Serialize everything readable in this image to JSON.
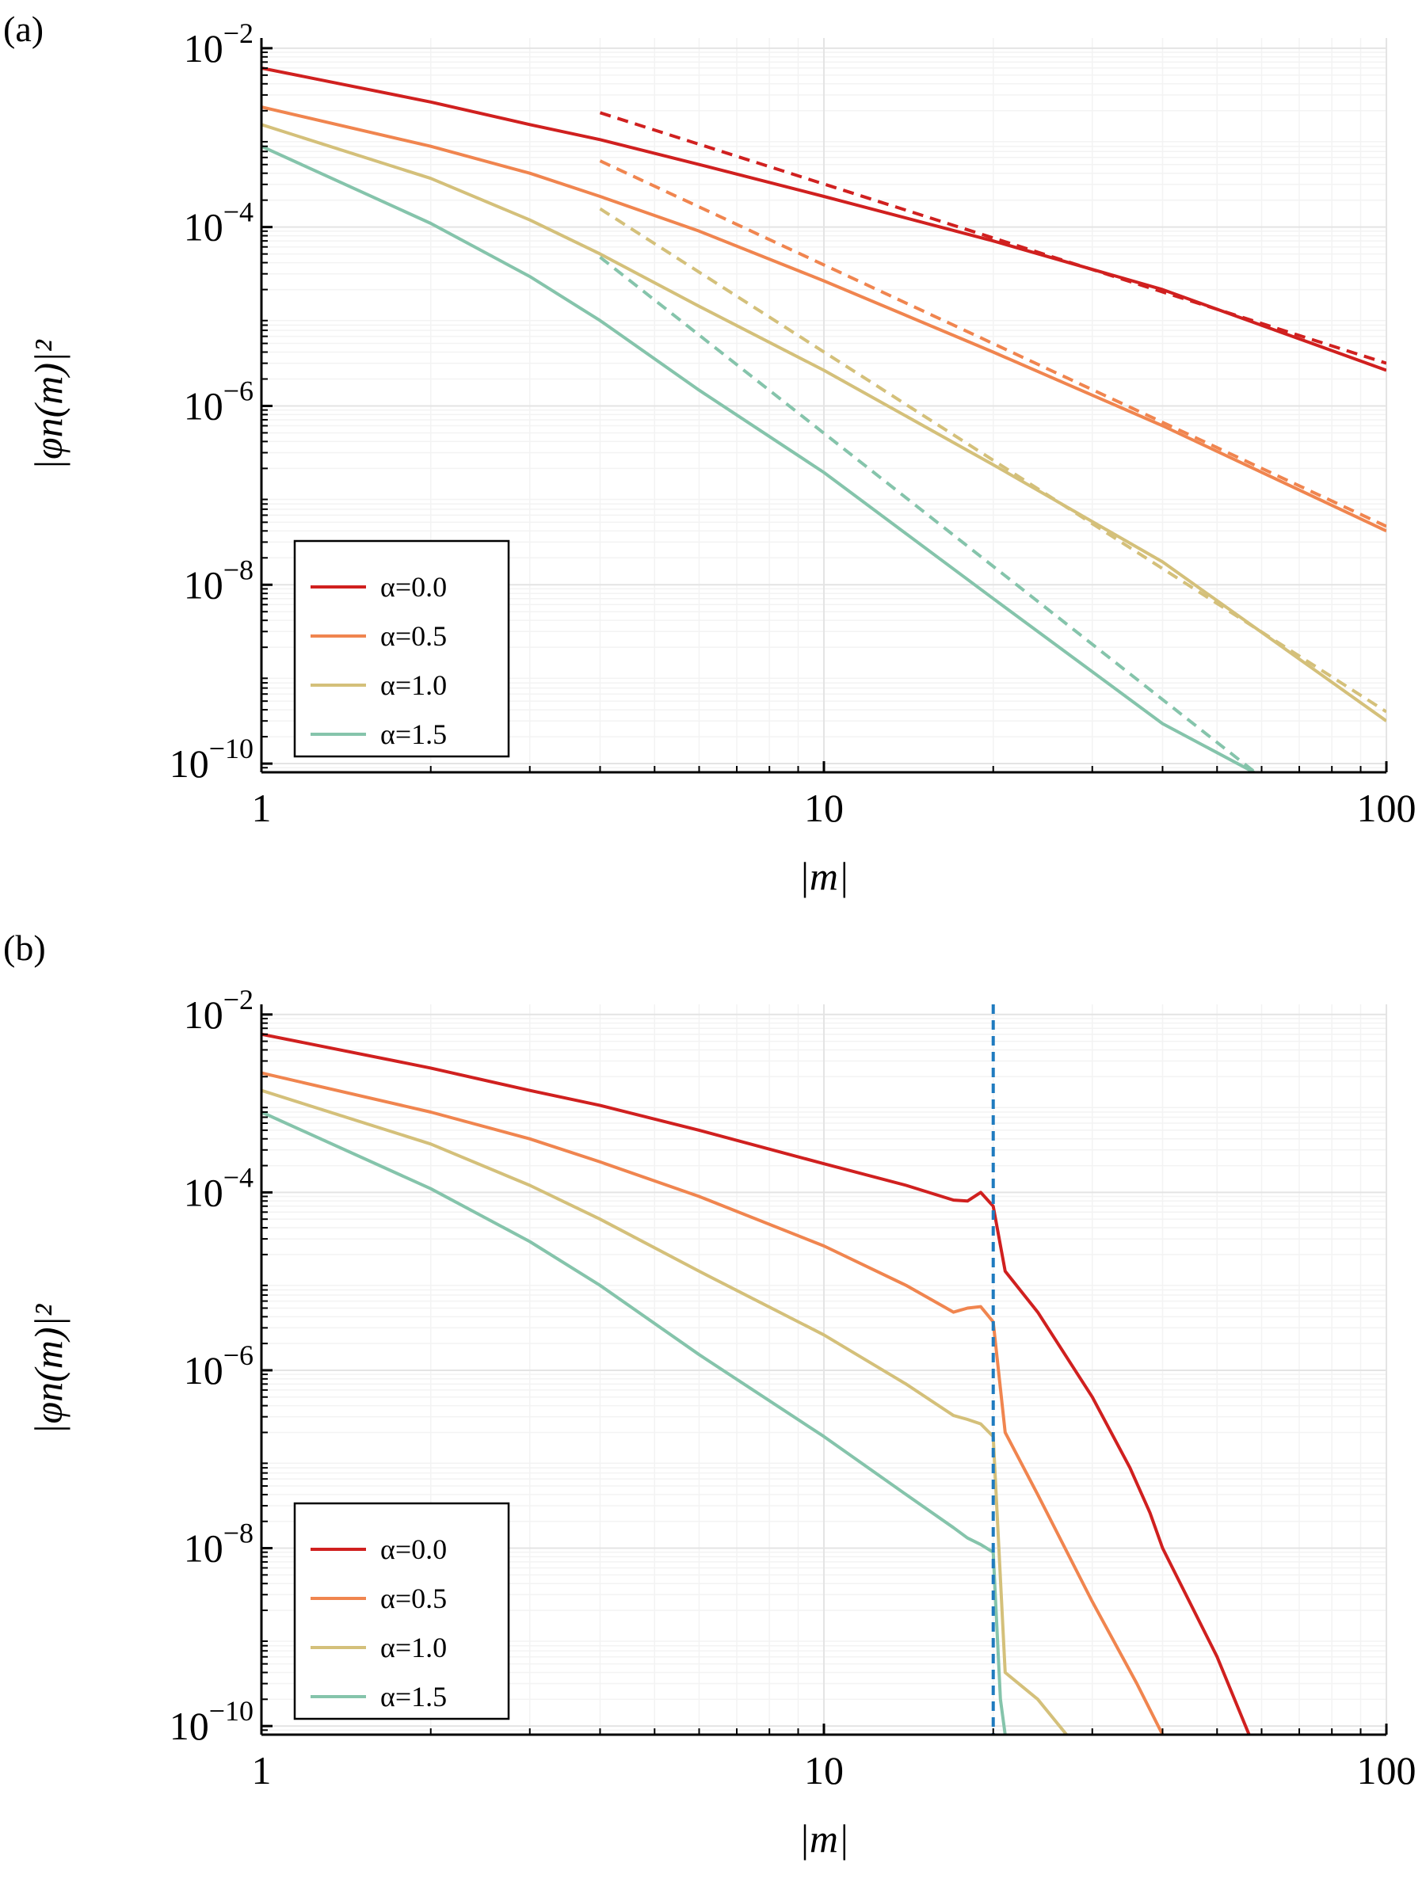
{
  "chart_data": [
    {
      "type": "line",
      "panel_label": "(a)",
      "xscale": "log",
      "yscale": "log",
      "xlim": [
        1,
        100
      ],
      "ylim": [
        8e-11,
        0.013
      ],
      "xlabel": "|m|",
      "ylabel": "|φn(m)|²",
      "xticks": [
        1,
        10,
        100
      ],
      "xtick_labels": [
        "1",
        "10",
        "100"
      ],
      "yticks": [
        1e-10,
        1e-08,
        1e-06,
        0.0001,
        0.01
      ],
      "ytick_bases": [
        "10",
        "10",
        "10",
        "10",
        "10"
      ],
      "ytick_exps": [
        "−10",
        "−8",
        "−6",
        "−4",
        "−2"
      ],
      "grid": true,
      "legend_position": "bottom-left",
      "series": [
        {
          "name": "α=0.0",
          "color": "#d0201f",
          "style": "solid",
          "x": [
            1,
            2,
            3,
            4,
            6,
            10,
            20,
            40,
            100
          ],
          "y": [
            0.006,
            0.0025,
            0.0014,
            0.00095,
            0.0005,
            0.00022,
            7e-05,
            2e-05,
            2.5e-06
          ]
        },
        {
          "name": "α=0.5",
          "color": "#f0854f",
          "style": "solid",
          "x": [
            1,
            2,
            3,
            4,
            6,
            10,
            20,
            40,
            100
          ],
          "y": [
            0.0022,
            0.0008,
            0.0004,
            0.00022,
            9e-05,
            2.5e-05,
            4e-06,
            6e-07,
            4e-08
          ]
        },
        {
          "name": "α=1.0",
          "color": "#d4c07a",
          "style": "solid",
          "x": [
            1,
            2,
            3,
            4,
            6,
            10,
            20,
            40,
            100
          ],
          "y": [
            0.0014,
            0.00035,
            0.00012,
            5e-05,
            1.3e-05,
            2.5e-06,
            2.2e-07,
            1.8e-08,
            3e-10
          ]
        },
        {
          "name": "α=1.5",
          "color": "#85c4ab",
          "style": "solid",
          "x": [
            1,
            2,
            3,
            4,
            6,
            10,
            20,
            40,
            60
          ],
          "y": [
            0.0008,
            0.00011,
            2.8e-05,
            9e-06,
            1.5e-06,
            1.8e-07,
            7e-09,
            2.8e-10,
            7.2e-11
          ]
        },
        {
          "name": "α=0.0 asymptote",
          "color": "#d0201f",
          "style": "dashed",
          "x": [
            4,
            100
          ],
          "y": [
            0.0019,
            3e-06
          ]
        },
        {
          "name": "α=0.5 asymptote",
          "color": "#f0854f",
          "style": "dashed",
          "x": [
            4,
            100
          ],
          "y": [
            0.00055,
            4.5e-08
          ]
        },
        {
          "name": "α=1.0 asymptote",
          "color": "#d4c07a",
          "style": "dashed",
          "x": [
            4,
            100
          ],
          "y": [
            0.00016,
            3.8e-10
          ]
        },
        {
          "name": "α=1.5 asymptote",
          "color": "#85c4ab",
          "style": "dashed",
          "x": [
            4,
            60
          ],
          "y": [
            4.6e-05,
            7e-11
          ]
        }
      ],
      "legend": [
        "α=0.0",
        "α=0.5",
        "α=1.0",
        "α=1.5"
      ]
    },
    {
      "type": "line",
      "panel_label": "(b)",
      "xscale": "log",
      "yscale": "log",
      "xlim": [
        1,
        100
      ],
      "ylim": [
        8e-11,
        0.013
      ],
      "xlabel": "|m|",
      "ylabel": "|φn(m)|²",
      "xticks": [
        1,
        10,
        100
      ],
      "xtick_labels": [
        "1",
        "10",
        "100"
      ],
      "yticks": [
        1e-10,
        1e-08,
        1e-06,
        0.0001,
        0.01
      ],
      "ytick_bases": [
        "10",
        "10",
        "10",
        "10",
        "10"
      ],
      "ytick_exps": [
        "−10",
        "−8",
        "−6",
        "−4",
        "−2"
      ],
      "grid": true,
      "legend_position": "bottom-left",
      "vline": {
        "x": 20,
        "color": "#1f7bbf",
        "style": "dashed"
      },
      "series": [
        {
          "name": "α=0.0",
          "color": "#d0201f",
          "style": "solid",
          "x": [
            1,
            2,
            3,
            4,
            6,
            10,
            14,
            17,
            18,
            19,
            20,
            21,
            24,
            30,
            35,
            38,
            40,
            50,
            57
          ],
          "y": [
            0.006,
            0.0025,
            0.0014,
            0.00095,
            0.0005,
            0.00021,
            0.00012,
            8.2e-05,
            8e-05,
            0.0001,
            7e-05,
            1.3e-05,
            4.5e-06,
            5e-07,
            8e-08,
            2.5e-08,
            1e-08,
            6e-10,
            8e-11
          ]
        },
        {
          "name": "α=0.5",
          "color": "#f0854f",
          "style": "solid",
          "x": [
            1,
            2,
            3,
            4,
            6,
            10,
            14,
            17,
            18,
            19,
            20,
            21,
            24,
            30,
            36,
            40
          ],
          "y": [
            0.0022,
            0.0008,
            0.0004,
            0.00022,
            9e-05,
            2.5e-05,
            9e-06,
            4.5e-06,
            5e-06,
            5.2e-06,
            3.5e-06,
            2e-07,
            4e-08,
            2.5e-09,
            3e-10,
            8e-11
          ]
        },
        {
          "name": "α=1.0",
          "color": "#d4c07a",
          "style": "solid",
          "x": [
            1,
            2,
            3,
            4,
            6,
            10,
            14,
            17,
            18,
            19,
            20,
            21,
            24,
            27
          ],
          "y": [
            0.0014,
            0.00035,
            0.00012,
            5e-05,
            1.3e-05,
            2.5e-06,
            7e-07,
            3.1e-07,
            2.8e-07,
            2.5e-07,
            1.8e-07,
            4e-10,
            2e-10,
            8e-11
          ]
        },
        {
          "name": "α=1.5",
          "color": "#85c4ab",
          "style": "solid",
          "x": [
            1,
            2,
            3,
            4,
            6,
            10,
            14,
            17,
            18,
            19,
            20,
            20.6,
            21
          ],
          "y": [
            0.0008,
            0.00011,
            2.8e-05,
            9e-06,
            1.5e-06,
            1.8e-07,
            4e-08,
            1.7e-08,
            1.3e-08,
            1.1e-08,
            9e-09,
            2e-10,
            8e-11
          ]
        }
      ],
      "legend": [
        "α=0.0",
        "α=0.5",
        "α=1.0",
        "α=1.5"
      ]
    }
  ]
}
